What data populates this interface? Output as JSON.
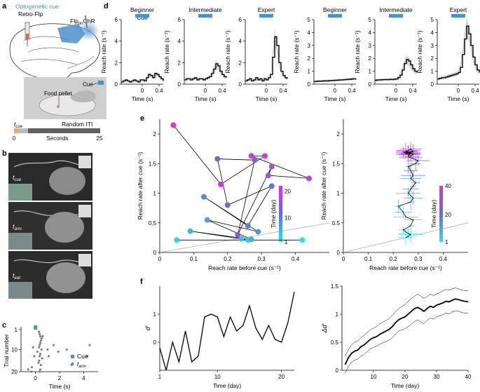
{
  "panel_labels": {
    "a": "a",
    "b": "b",
    "c": "c",
    "d": "d",
    "e": "e",
    "f": "f"
  },
  "colors": {
    "cue": "#4a90cc",
    "brain_cue": "#5b9bd5",
    "purple": "#b030d0",
    "cyan": "#30e0e8",
    "gray": "#808080"
  },
  "panel_a": {
    "title": "Optogenetic cue",
    "retro_label": "Retro-Flp",
    "flp_main": "Flp",
    "flp_sub": "on",
    "flp_tail": "ChR",
    "cue_label": "Cue",
    "pellet_label": "Food pellet",
    "timeline": {
      "t_main": "t",
      "t_sub": "cue",
      "random_iti": "Random ITI",
      "start": "0",
      "end": "25",
      "seconds": "Seconds"
    }
  },
  "panel_b": {
    "frames": [
      {
        "t_main": "t",
        "t_sub": "cue"
      },
      {
        "t_main": "t",
        "t_sub": "arm"
      },
      {
        "t_main": "t",
        "t_sub": "eat"
      }
    ]
  },
  "panel_c": {
    "xlabel": "Time (s)",
    "ylabel": "Trial number",
    "legend": [
      {
        "label": "Cue",
        "color": "#4a90cc"
      },
      {
        "label_main": "t",
        "label_sub": "arm",
        "color": "#808080"
      }
    ]
  },
  "chart_data": [
    {
      "type": "raster",
      "title": "",
      "xlabel": "Time (s)",
      "ylabel": "Trial number",
      "xlim": [
        -1.2,
        5.2
      ],
      "ylim": [
        20,
        1
      ],
      "xticks": [
        "0",
        "2",
        "4"
      ],
      "yticks": [
        "1",
        "10",
        "20"
      ],
      "cue": {
        "trial": 1,
        "time": 0
      },
      "points": [
        [
          0.3,
          2
        ],
        [
          0.35,
          3
        ],
        [
          0.6,
          4
        ],
        [
          0.4,
          4
        ],
        [
          0.5,
          5
        ],
        [
          0.45,
          6
        ],
        [
          0.4,
          7
        ],
        [
          0.35,
          8
        ],
        [
          0.3,
          9
        ],
        [
          -0.2,
          9
        ],
        [
          0.5,
          10
        ],
        [
          0.15,
          11
        ],
        [
          0.4,
          12
        ],
        [
          0.35,
          13
        ],
        [
          -0.1,
          13
        ],
        [
          0.55,
          14
        ],
        [
          0.3,
          15
        ],
        [
          0.25,
          16
        ],
        [
          0.45,
          17
        ],
        [
          -0.3,
          18
        ],
        [
          0.4,
          19
        ],
        [
          0.35,
          20
        ],
        [
          1.0,
          10
        ],
        [
          1.1,
          13
        ],
        [
          1.5,
          8
        ],
        [
          1.9,
          11
        ],
        [
          2.6,
          10
        ],
        [
          3.0,
          17
        ],
        [
          4.3,
          13
        ],
        [
          4.5,
          8
        ],
        [
          -0.6,
          19
        ],
        [
          -0.35,
          20
        ]
      ]
    },
    {
      "type": "line",
      "group": "d",
      "subplots": [
        {
          "title": "Beginner",
          "cue_label": "Cue",
          "ylim": [
            0,
            6
          ],
          "yticks": [
            "0",
            "2",
            "4",
            "6"
          ],
          "ylabel": "Reach rate (s⁻¹)",
          "xlabel": "Time (s)",
          "xticks": [
            "0",
            "0.4"
          ],
          "x": [
            -0.5,
            -0.45,
            -0.4,
            -0.35,
            -0.3,
            -0.25,
            -0.2,
            -0.15,
            -0.1,
            -0.05,
            0,
            0.05,
            0.1,
            0.15,
            0.2,
            0.25,
            0.3,
            0.35,
            0.4,
            0.45,
            0.5
          ],
          "y": [
            0.2,
            0.3,
            0.4,
            0.3,
            0.2,
            0.3,
            0.4,
            0.3,
            0.2,
            0.4,
            0.4,
            0.3,
            0.6,
            0.9,
            0.8,
            0.6,
            1.0,
            0.9,
            0.7,
            0.5,
            0.3
          ]
        },
        {
          "title": "Intermediate",
          "ylim": [
            0,
            6
          ],
          "yticks": [
            "0",
            "2",
            "4",
            "6"
          ],
          "ylabel": "Reach rate (s⁻¹)",
          "xlabel": "Time (s)",
          "xticks": [
            "0",
            "0.4"
          ],
          "x": [
            -0.5,
            -0.45,
            -0.4,
            -0.35,
            -0.3,
            -0.25,
            -0.2,
            -0.15,
            -0.1,
            -0.05,
            0,
            0.05,
            0.1,
            0.15,
            0.2,
            0.25,
            0.3,
            0.35,
            0.4,
            0.45,
            0.5
          ],
          "y": [
            0.4,
            0.5,
            0.5,
            0.4,
            0.5,
            0.6,
            0.4,
            0.5,
            0.5,
            0.4,
            0.5,
            0.6,
            0.7,
            1.0,
            1.4,
            1.9,
            1.7,
            1.2,
            0.9,
            0.7,
            0.6
          ]
        },
        {
          "title": "Expert",
          "ylim": [
            0,
            6
          ],
          "yticks": [
            "0",
            "2",
            "4",
            "6"
          ],
          "ylabel": "Reach rate (s⁻¹)",
          "xlabel": "Time (s)",
          "xticks": [
            "0",
            "0.4"
          ],
          "x": [
            -0.5,
            -0.45,
            -0.4,
            -0.35,
            -0.3,
            -0.25,
            -0.2,
            -0.15,
            -0.1,
            -0.05,
            0,
            0.05,
            0.1,
            0.15,
            0.2,
            0.25,
            0.3,
            0.35,
            0.4,
            0.45,
            0.5
          ],
          "y": [
            0.3,
            0.4,
            0.5,
            0.3,
            0.4,
            0.6,
            0.4,
            0.5,
            0.3,
            0.5,
            0.4,
            0.6,
            0.9,
            2.5,
            4.4,
            3.6,
            2.0,
            1.2,
            0.8,
            0.6,
            0.5
          ]
        },
        {
          "title": "Beginner",
          "ylim": [
            0,
            5
          ],
          "yticks": [
            "0",
            "1",
            "2",
            "3",
            "4",
            "5"
          ],
          "ylabel": "Reach rate (s⁻¹)",
          "xlabel": "Time (s)",
          "xticks": [
            "0",
            "0.4"
          ],
          "x": [
            -0.5,
            -0.45,
            -0.4,
            -0.35,
            -0.3,
            -0.25,
            -0.2,
            -0.15,
            -0.1,
            -0.05,
            0,
            0.05,
            0.1,
            0.15,
            0.2,
            0.25,
            0.3,
            0.35,
            0.4,
            0.45,
            0.5
          ],
          "y": [
            0.2,
            0.22,
            0.24,
            0.23,
            0.25,
            0.26,
            0.25,
            0.27,
            0.28,
            0.29,
            0.3,
            0.31,
            0.32,
            0.33,
            0.34,
            0.36,
            0.37,
            0.38,
            0.4,
            0.41,
            0.42
          ]
        },
        {
          "title": "Intermediate",
          "ylim": [
            0,
            5
          ],
          "yticks": [
            "0",
            "1",
            "2",
            "3",
            "4",
            "5"
          ],
          "ylabel": "Reach rate (s⁻¹)",
          "xlabel": "Time (s)",
          "xticks": [
            "0",
            "0.4"
          ],
          "x": [
            -0.5,
            -0.45,
            -0.4,
            -0.35,
            -0.3,
            -0.25,
            -0.2,
            -0.15,
            -0.1,
            -0.05,
            0,
            0.05,
            0.1,
            0.15,
            0.2,
            0.25,
            0.3,
            0.35,
            0.4,
            0.45,
            0.5
          ],
          "y": [
            0.3,
            0.32,
            0.33,
            0.34,
            0.35,
            0.36,
            0.35,
            0.37,
            0.36,
            0.38,
            0.4,
            0.5,
            0.7,
            1.1,
            1.6,
            1.9,
            1.8,
            1.5,
            1.2,
            1.0,
            0.9
          ]
        },
        {
          "title": "Expert",
          "ylim": [
            0,
            5
          ],
          "yticks": [
            "0",
            "1",
            "2",
            "3",
            "4",
            "5"
          ],
          "ylabel": "Reach rate (s⁻¹)",
          "xlabel": "Time (s)",
          "xticks": [
            "0",
            "0.4"
          ],
          "x": [
            -0.5,
            -0.45,
            -0.4,
            -0.35,
            -0.3,
            -0.25,
            -0.2,
            -0.15,
            -0.1,
            -0.05,
            0,
            0.05,
            0.1,
            0.15,
            0.2,
            0.25,
            0.3,
            0.35,
            0.4,
            0.45,
            0.5
          ],
          "y": [
            0.4,
            0.45,
            0.5,
            0.5,
            0.55,
            0.6,
            0.65,
            0.7,
            0.75,
            0.8,
            0.9,
            1.3,
            2.3,
            3.5,
            4.5,
            3.9,
            3.0,
            2.1,
            1.5,
            1.1,
            0.9
          ]
        }
      ]
    },
    {
      "type": "scatter",
      "group": "e-left",
      "xlabel": "Reach rate before cue (s⁻¹)",
      "ylabel": "Reach rate after cue (s⁻¹)",
      "xlim": [
        0,
        0.5
      ],
      "ylim": [
        0,
        2.25
      ],
      "xticks": [
        "0",
        "0.1",
        "0.2",
        "0.3",
        "0.4"
      ],
      "yticks": [
        "0",
        "0.5",
        "1",
        "1.5",
        "2"
      ],
      "colorbar": {
        "label": "Time (day)",
        "ticks": [
          "1",
          "10",
          "20"
        ],
        "min": 1,
        "max": 22
      },
      "points": [
        {
          "day": 1,
          "x": 0.42,
          "y": 0.21
        },
        {
          "day": 2,
          "x": 0.05,
          "y": 0.21
        },
        {
          "day": 3,
          "x": 0.26,
          "y": 0.21
        },
        {
          "day": 4,
          "x": 0.24,
          "y": 0.23
        },
        {
          "day": 5,
          "x": 0.09,
          "y": 0.36
        },
        {
          "day": 6,
          "x": 0.27,
          "y": 0.22
        },
        {
          "day": 7,
          "x": 0.14,
          "y": 0.55
        },
        {
          "day": 8,
          "x": 0.29,
          "y": 0.35
        },
        {
          "day": 9,
          "x": 0.13,
          "y": 0.94
        },
        {
          "day": 10,
          "x": 0.26,
          "y": 0.45
        },
        {
          "day": 11,
          "x": 0.33,
          "y": 1.12
        },
        {
          "day": 12,
          "x": 0.2,
          "y": 0.8
        },
        {
          "day": 13,
          "x": 0.17,
          "y": 1.58
        },
        {
          "day": 14,
          "x": 0.28,
          "y": 1.56
        },
        {
          "day": 15,
          "x": 0.23,
          "y": 0.3
        },
        {
          "day": 16,
          "x": 0.33,
          "y": 1.45
        },
        {
          "day": 17,
          "x": 0.32,
          "y": 1.3
        },
        {
          "day": 18,
          "x": 0.44,
          "y": 1.25
        },
        {
          "day": 19,
          "x": 0.27,
          "y": 1.63
        },
        {
          "day": 20,
          "x": 0.31,
          "y": 1.63
        },
        {
          "day": 21,
          "x": 0.18,
          "y": 1.15
        },
        {
          "day": 22,
          "x": 0.04,
          "y": 2.15
        }
      ]
    },
    {
      "type": "scatter",
      "group": "e-right",
      "xlabel": "Reach rate before cue (s⁻¹)",
      "ylabel": "Reach rate after cue (s⁻¹)",
      "xlim": [
        0,
        0.5
      ],
      "ylim": [
        0,
        2.25
      ],
      "xticks": [
        "0",
        "0.1",
        "0.2",
        "0.3",
        "0.4"
      ],
      "yticks": [
        "0",
        "0.5",
        "1",
        "1.5",
        "2"
      ],
      "colorbar": {
        "label": "Time (day)",
        "ticks": [
          "1",
          "20",
          "40"
        ],
        "min": 1,
        "max": 40
      },
      "points": [
        [
          0.25,
          0.25
        ],
        [
          0.27,
          0.3
        ],
        [
          0.26,
          0.32
        ],
        [
          0.24,
          0.38
        ],
        [
          0.27,
          0.45
        ],
        [
          0.28,
          0.55
        ],
        [
          0.25,
          0.6
        ],
        [
          0.24,
          0.68
        ],
        [
          0.22,
          0.78
        ],
        [
          0.27,
          0.85
        ],
        [
          0.28,
          0.92
        ],
        [
          0.26,
          1.0
        ],
        [
          0.27,
          1.07
        ],
        [
          0.28,
          1.12
        ],
        [
          0.29,
          1.18
        ],
        [
          0.27,
          1.25
        ],
        [
          0.28,
          1.3
        ],
        [
          0.27,
          1.38
        ],
        [
          0.26,
          1.45
        ],
        [
          0.29,
          1.5
        ],
        [
          0.3,
          1.55
        ],
        [
          0.27,
          1.6
        ],
        [
          0.26,
          1.62
        ],
        [
          0.27,
          1.7
        ],
        [
          0.25,
          1.66
        ],
        [
          0.26,
          1.72
        ],
        [
          0.27,
          1.75
        ],
        [
          0.28,
          1.7
        ],
        [
          0.26,
          1.68
        ],
        [
          0.24,
          1.7
        ],
        [
          0.26,
          1.65
        ],
        [
          0.27,
          1.67
        ],
        [
          0.25,
          1.7
        ],
        [
          0.28,
          1.66
        ],
        [
          0.27,
          1.62
        ],
        [
          0.26,
          1.68
        ],
        [
          0.25,
          1.72
        ],
        [
          0.27,
          1.69
        ],
        [
          0.28,
          1.71
        ],
        [
          0.26,
          1.66
        ]
      ]
    },
    {
      "type": "line",
      "group": "f-left",
      "xlabel": "Time (day)",
      "ylabel": "d′",
      "xlim": [
        1,
        22
      ],
      "ylim": [
        -1,
        2
      ],
      "xticks": [
        "1",
        "10",
        "20"
      ],
      "yticks": [
        "0",
        "1"
      ],
      "x": [
        1,
        2,
        3,
        4,
        5,
        6,
        7,
        8,
        9,
        10,
        11,
        12,
        13,
        14,
        15,
        16,
        17,
        18,
        19,
        20,
        21,
        22
      ],
      "y": [
        -0.2,
        -1.0,
        0.0,
        -0.7,
        0.4,
        -0.7,
        -0.5,
        0.9,
        1.0,
        0.9,
        0.2,
        0.9,
        0.4,
        0.6,
        1.3,
        0.5,
        0.1,
        0.6,
        0.1,
        -0.0,
        0.7,
        1.8
      ]
    },
    {
      "type": "line",
      "group": "f-right",
      "xlabel": "Time (day)",
      "ylabel": "Δd′",
      "xlim": [
        1,
        40
      ],
      "ylim": [
        0,
        1.5
      ],
      "xticks": [
        "10",
        "20",
        "30",
        "40"
      ],
      "yticks": [
        "0",
        "0.5",
        "1",
        "1.5"
      ],
      "x": [
        1,
        2,
        3,
        4,
        5,
        6,
        7,
        8,
        9,
        10,
        11,
        12,
        13,
        14,
        15,
        16,
        17,
        18,
        19,
        20,
        21,
        22,
        23,
        24,
        25,
        26,
        27,
        28,
        29,
        30,
        31,
        32,
        33,
        34,
        35,
        36,
        37,
        38,
        39,
        40
      ],
      "y": [
        0.1,
        0.22,
        0.3,
        0.34,
        0.36,
        0.42,
        0.45,
        0.5,
        0.55,
        0.58,
        0.6,
        0.64,
        0.67,
        0.7,
        0.73,
        0.78,
        0.85,
        0.9,
        0.93,
        0.95,
        1.0,
        1.05,
        1.1,
        1.12,
        1.09,
        1.05,
        1.1,
        1.14,
        1.12,
        1.16,
        1.18,
        1.2,
        1.23,
        1.22,
        1.25,
        1.27,
        1.26,
        1.24,
        1.23,
        1.22
      ],
      "upper": [
        0.25,
        0.36,
        0.45,
        0.5,
        0.52,
        0.58,
        0.62,
        0.67,
        0.72,
        0.75,
        0.78,
        0.83,
        0.86,
        0.89,
        0.92,
        0.98,
        1.05,
        1.1,
        1.14,
        1.17,
        1.23,
        1.28,
        1.32,
        1.36,
        1.32,
        1.28,
        1.31,
        1.36,
        1.33,
        1.36,
        1.38,
        1.42,
        1.44,
        1.43,
        1.45,
        1.47,
        1.45,
        1.43,
        1.42,
        1.42
      ],
      "lower": [
        -0.05,
        0.06,
        0.14,
        0.18,
        0.2,
        0.25,
        0.28,
        0.33,
        0.38,
        0.41,
        0.43,
        0.46,
        0.49,
        0.51,
        0.54,
        0.58,
        0.64,
        0.7,
        0.72,
        0.74,
        0.78,
        0.82,
        0.87,
        0.9,
        0.86,
        0.83,
        0.89,
        0.93,
        0.91,
        0.95,
        0.97,
        0.99,
        1.02,
        1.0,
        1.04,
        1.06,
        1.05,
        1.03,
        1.02,
        1.02
      ]
    }
  ]
}
